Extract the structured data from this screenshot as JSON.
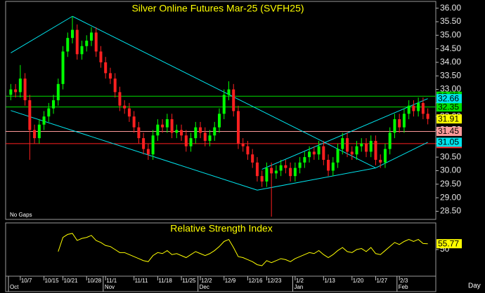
{
  "chart_data": [
    {
      "type": "candlestick",
      "title": "Silver Online Futures Mar-25 (SVFH25)",
      "annotation": "No Gaps",
      "x_label": "Day",
      "categories": [
        null,
        null,
        "10/7",
        null,
        null,
        null,
        null,
        "10/15",
        null,
        null,
        null,
        "10/21",
        null,
        null,
        null,
        null,
        "10/28",
        null,
        null,
        null,
        "11/1",
        null,
        null,
        null,
        null,
        null,
        "11/11",
        null,
        null,
        null,
        null,
        "11/18",
        null,
        null,
        null,
        null,
        "11/25",
        null,
        null,
        null,
        "12/2",
        null,
        null,
        null,
        null,
        "12/9",
        null,
        null,
        null,
        null,
        "12/16",
        null,
        null,
        null,
        "12/23",
        null,
        null,
        null,
        null,
        null,
        "1/2",
        null,
        null,
        null,
        null,
        null,
        "1/13",
        null,
        null,
        null,
        null,
        null,
        "1/20",
        null,
        null,
        null,
        null,
        "1/27",
        null,
        null,
        null,
        null,
        "2/3",
        null,
        null,
        null,
        null,
        null,
        null
      ],
      "months": [
        {
          "label": "Oct",
          "index": 0
        },
        {
          "label": "Nov",
          "index": 20
        },
        {
          "label": "Dec",
          "index": 40
        },
        {
          "label": "Jan",
          "index": 60
        },
        {
          "label": "Feb",
          "index": 82
        }
      ],
      "open": [
        32.8,
        33.0,
        32.9,
        33.4,
        32.6,
        31.5,
        31.2,
        31.7,
        32.0,
        32.3,
        32.6,
        33.2,
        34.4,
        34.9,
        35.2,
        34.3,
        34.6,
        34.8,
        35.1,
        34.4,
        34.0,
        33.6,
        33.4,
        32.9,
        32.4,
        32.3,
        32.0,
        31.6,
        31.2,
        30.8,
        30.6,
        31.3,
        31.7,
        31.6,
        31.9,
        31.4,
        31.5,
        31.3,
        30.9,
        31.2,
        31.6,
        31.4,
        31.1,
        31.3,
        31.6,
        32.1,
        32.8,
        33.0,
        32.2,
        31.0,
        30.9,
        30.6,
        30.3,
        29.8,
        29.6,
        30.1,
        29.9,
        30.0,
        30.2,
        30.1,
        29.8,
        30.1,
        30.3,
        30.5,
        30.7,
        30.6,
        30.9,
        30.4,
        30.0,
        30.3,
        30.8,
        31.2,
        30.7,
        30.6,
        30.9,
        31.0,
        30.7,
        31.1,
        30.4,
        30.3,
        30.8,
        31.4,
        31.9,
        31.6,
        32.1,
        32.4,
        32.2,
        32.5,
        32.1
      ],
      "high": [
        33.2,
        33.2,
        33.9,
        33.6,
        32.8,
        31.7,
        31.9,
        32.2,
        32.5,
        32.8,
        33.4,
        34.6,
        35.1,
        35.7,
        35.4,
        34.8,
        35.0,
        35.3,
        35.3,
        34.6,
        34.2,
        33.8,
        33.6,
        33.1,
        32.6,
        32.5,
        32.2,
        31.8,
        31.4,
        31.0,
        31.5,
        31.9,
        31.9,
        32.1,
        32.1,
        31.7,
        31.7,
        31.5,
        31.4,
        31.8,
        31.8,
        31.6,
        31.5,
        31.8,
        32.3,
        33.0,
        33.3,
        33.2,
        32.4,
        31.2,
        31.1,
        30.8,
        30.5,
        30.0,
        30.3,
        30.3,
        30.2,
        30.4,
        30.4,
        30.3,
        30.3,
        30.5,
        30.7,
        30.9,
        30.9,
        31.1,
        31.1,
        30.6,
        30.5,
        31.0,
        31.4,
        31.4,
        30.9,
        31.1,
        31.2,
        31.2,
        31.3,
        31.3,
        30.6,
        31.0,
        31.6,
        32.1,
        32.1,
        32.3,
        32.6,
        32.6,
        32.7,
        32.7,
        32.3
      ],
      "low": [
        32.6,
        32.7,
        32.7,
        32.4,
        30.4,
        31.0,
        31.0,
        31.5,
        31.8,
        32.1,
        32.4,
        33.0,
        34.2,
        34.7,
        34.1,
        34.1,
        34.4,
        34.6,
        34.2,
        33.8,
        33.4,
        33.2,
        32.7,
        32.2,
        32.1,
        31.8,
        31.4,
        31.0,
        30.6,
        30.4,
        30.4,
        31.1,
        31.4,
        31.4,
        31.2,
        31.2,
        31.1,
        30.7,
        30.7,
        31.0,
        31.2,
        30.9,
        30.9,
        31.1,
        31.4,
        31.9,
        32.6,
        32.0,
        30.8,
        30.7,
        30.4,
        30.1,
        29.6,
        29.4,
        29.4,
        28.3,
        29.7,
        29.8,
        29.9,
        29.6,
        29.6,
        29.9,
        30.1,
        30.3,
        30.4,
        30.4,
        30.2,
        29.8,
        29.8,
        30.1,
        30.6,
        30.5,
        30.4,
        30.4,
        30.7,
        30.5,
        30.5,
        30.2,
        30.1,
        30.1,
        30.6,
        31.2,
        31.4,
        31.4,
        31.9,
        32.0,
        32.0,
        31.9,
        31.71
      ],
      "close": [
        33.0,
        32.9,
        33.4,
        32.6,
        31.5,
        31.2,
        31.7,
        32.0,
        32.3,
        32.6,
        33.2,
        34.4,
        34.9,
        35.2,
        34.3,
        34.6,
        34.8,
        35.1,
        34.4,
        34.0,
        33.6,
        33.4,
        32.9,
        32.4,
        32.3,
        32.0,
        31.6,
        31.2,
        30.8,
        30.6,
        31.3,
        31.7,
        31.6,
        31.9,
        31.4,
        31.5,
        31.3,
        30.9,
        31.2,
        31.6,
        31.4,
        31.1,
        31.3,
        31.6,
        32.1,
        32.8,
        33.0,
        32.2,
        31.0,
        30.9,
        30.6,
        30.3,
        29.8,
        29.6,
        30.1,
        29.9,
        30.0,
        30.2,
        30.1,
        29.8,
        30.1,
        30.3,
        30.5,
        30.7,
        30.6,
        30.9,
        30.4,
        30.0,
        30.3,
        30.8,
        31.2,
        30.7,
        30.6,
        30.9,
        31.0,
        30.7,
        31.1,
        30.4,
        30.3,
        30.8,
        31.4,
        31.9,
        31.6,
        32.1,
        32.4,
        32.2,
        32.5,
        32.1,
        31.91
      ],
      "up_color": "#00ff00",
      "down_color": "#ff2020",
      "last_tag_color": "#ffff00",
      "ylim": [
        28.2,
        36.25
      ],
      "yticks": [
        {
          "value": 28.5,
          "label": "28.50"
        },
        {
          "value": 29,
          "label": "29.00"
        },
        {
          "value": 29.5,
          "label": "29.50"
        },
        {
          "value": 30,
          "label": "30.00"
        },
        {
          "value": 30.5,
          "label": "30.50"
        },
        {
          "value": 31,
          "label": "31.00"
        },
        {
          "value": 31.5,
          "label": "31.50"
        },
        {
          "value": 32,
          "label": "32.00"
        },
        {
          "value": 32.5,
          "label": "32.50"
        },
        {
          "value": 33,
          "label": "33.00"
        },
        {
          "value": 33.5,
          "label": "33.50"
        },
        {
          "value": 34,
          "label": "34.00"
        },
        {
          "value": 34.5,
          "label": "34.50"
        },
        {
          "value": 35,
          "label": "35.00"
        },
        {
          "value": 35.5,
          "label": "35.50"
        },
        {
          "value": 36,
          "label": "36.00"
        }
      ],
      "levels": [
        {
          "value": 32.75,
          "color": "#00e000"
        },
        {
          "value": 32.35,
          "color": "#00e000"
        },
        {
          "value": 31.45,
          "color": "#ff9a9a"
        },
        {
          "value": 31,
          "label": "31.00",
          "color": "#ff2020"
        }
      ],
      "trend_lines": [
        {
          "x": [
            0,
            13
          ],
          "y": [
            34.35,
            35.7
          ],
          "color": "#00e5ee",
          "tag": false
        },
        {
          "x": [
            13,
            77
          ],
          "y": [
            35.7,
            30.1
          ],
          "color": "#00e5ee",
          "tag": false
        },
        {
          "x": [
            0,
            52
          ],
          "y": [
            32.22,
            29.28
          ],
          "color": "#00e5ee",
          "tag": false
        },
        {
          "x": [
            53,
            88
          ],
          "y": [
            30.05,
            32.66
          ],
          "color": "#00e5ee",
          "tag": true
        },
        {
          "x": [
            77,
            88
          ],
          "y": [
            30.1,
            31.05
          ],
          "color": "#00e5ee",
          "tag": true
        },
        {
          "x": [
            52,
            77
          ],
          "y": [
            29.28,
            30.1
          ],
          "color": "#00e5ee",
          "tag": false
        }
      ]
    },
    {
      "type": "line",
      "title": "Relative Strength Index",
      "values": [
        null,
        null,
        null,
        null,
        null,
        null,
        null,
        null,
        null,
        null,
        48,
        62,
        65,
        66,
        59,
        61,
        62,
        64,
        59,
        57,
        54,
        53,
        50,
        47,
        47,
        45,
        43,
        41,
        39,
        38,
        44,
        47,
        46,
        49,
        45,
        46,
        44,
        42,
        45,
        48,
        46,
        44,
        46,
        49,
        53,
        58,
        60,
        52,
        43,
        42,
        40,
        38,
        35,
        34,
        39,
        37,
        39,
        41,
        40,
        38,
        41,
        43,
        45,
        47,
        46,
        49,
        45,
        42,
        45,
        49,
        52,
        48,
        47,
        50,
        51,
        48,
        52,
        46,
        45,
        49,
        53,
        57,
        55,
        58,
        60,
        58,
        60,
        56,
        55.77
      ],
      "color": "#ffff00",
      "tag_color": "#ffff00",
      "ylim": [
        25,
        75
      ],
      "yticks": [
        50
      ]
    }
  ]
}
